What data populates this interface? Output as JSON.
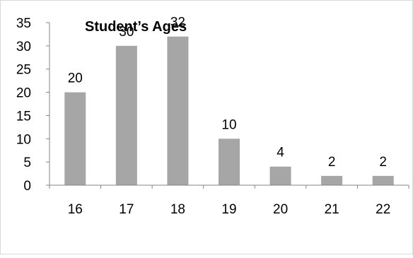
{
  "chart_data": {
    "type": "bar",
    "title": "Student’s Ages",
    "categories": [
      "16",
      "17",
      "18",
      "19",
      "20",
      "21",
      "22"
    ],
    "values": [
      20,
      30,
      32,
      10,
      4,
      2,
      2
    ],
    "data_labels": [
      "20",
      "30",
      "32",
      "10",
      "4",
      "2",
      "2"
    ],
    "ylim": [
      0,
      35
    ],
    "yticks": [
      "0",
      "5",
      "10",
      "15",
      "20",
      "25",
      "30",
      "35"
    ],
    "xlabel": "",
    "ylabel": "",
    "grid": false,
    "legend": "none",
    "bar_color": "#a6a6a6"
  }
}
